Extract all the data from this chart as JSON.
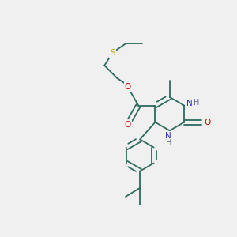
{
  "bg_color": "#f0f0f0",
  "bond_color": "#2d6b5e",
  "S_color": "#c8a800",
  "O_color": "#cc0000",
  "N_color": "#3333bb",
  "H_color": "#666699",
  "line_width": 1.3,
  "figsize": [
    3.0,
    3.0
  ],
  "dpi": 100,
  "xlim": [
    0,
    10
  ],
  "ylim": [
    0,
    10
  ]
}
